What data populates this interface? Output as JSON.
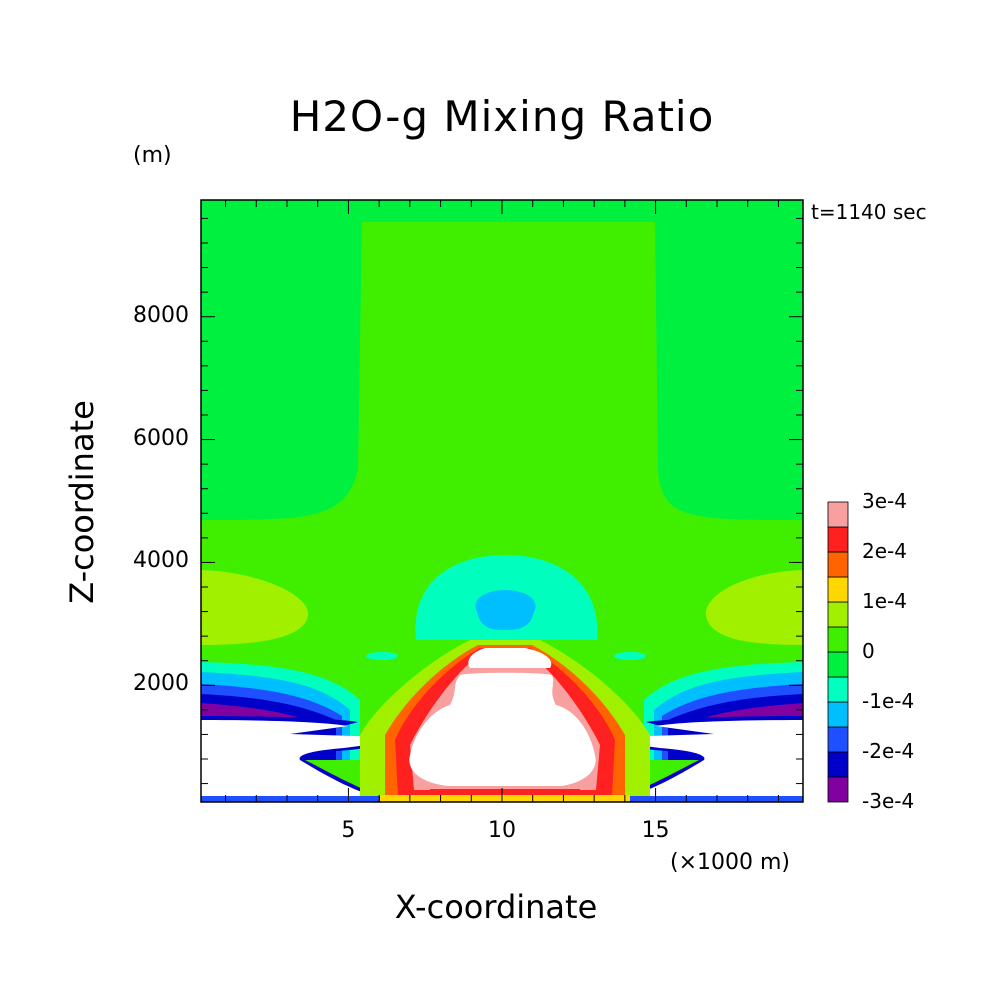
{
  "chart_data": {
    "type": "heatmap",
    "title": "H2O-g Mixing Ratio",
    "xlabel": "X-coordinate",
    "ylabel": "Z-coordinate",
    "x_unit": "(×1000 m)",
    "y_unit": "(m)",
    "timestamp": "t=1140 sec",
    "xlim": [
      0.2,
      19.8
    ],
    "ylim": [
      100,
      9900
    ],
    "x_ticks": [
      5,
      10,
      15
    ],
    "y_ticks": [
      2000,
      4000,
      6000,
      8000
    ],
    "x_tick_labels": [
      "5",
      "10",
      "15"
    ],
    "y_tick_labels": [
      "2000",
      "4000",
      "6000",
      "8000"
    ],
    "colorbar": {
      "levels": [
        -0.0003,
        -0.00025,
        -0.0002,
        -0.00015,
        -0.0001,
        -5e-05,
        0,
        5e-05,
        0.0001,
        0.00015,
        0.0002,
        0.00025,
        0.0003
      ],
      "colors": [
        "#8000a0",
        "#0000c8",
        "#1e50ff",
        "#00bfff",
        "#00ffbf",
        "#00f040",
        "#40ef00",
        "#a0f000",
        "#ffd700",
        "#ff6400",
        "#ff2020",
        "#f8a0a0"
      ],
      "tick_labels": [
        "3e-4",
        "2e-4",
        "1e-4",
        "0",
        "-1e-4",
        "-2e-4",
        "-3e-4"
      ],
      "out_of_range_color": "#ffffff"
    },
    "field_description": "Background ~ -5e-5 (green); central column 0 to 5e-5; lobes at z~2500-4000 near domain edges ~ 5e-5 to 1e-4; cyan/blue dome around x=10 km, z~3000 (-1e-4 to -1.5e-4); low-level white regions beyond colorbar range with red/orange rims in the center and purple/blue rims at the sides"
  },
  "colors": {
    "background": "#ffffff",
    "frame": "#000000"
  }
}
